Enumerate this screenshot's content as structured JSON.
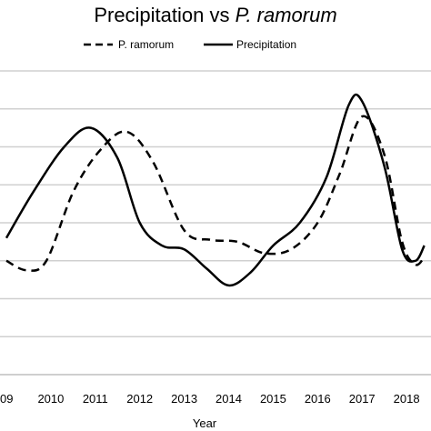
{
  "chart_data": {
    "type": "line",
    "title": "Precipitation vs ",
    "title_italic": "P. ramorum",
    "xlabel": "Year",
    "ylabel": "",
    "x": [
      2009,
      2010,
      2011,
      2012,
      2013,
      2014,
      2015,
      2016,
      2017,
      2018
    ],
    "tick_labels": [
      "09",
      "2010",
      "2011",
      "2012",
      "2013",
      "2014",
      "2015",
      "2016",
      "2017",
      "2018"
    ],
    "xlim": [
      2009,
      2018.4
    ],
    "ylim": [
      0,
      8
    ],
    "grid": true,
    "legend_position": "top",
    "series": [
      {
        "name": "P. ramorum",
        "style": "dashed",
        "color": "#000000",
        "points": [
          [
            2009,
            3.0
          ],
          [
            2009.45,
            2.75
          ],
          [
            2009.9,
            3.0
          ],
          [
            2010.5,
            4.8
          ],
          [
            2011.1,
            5.9
          ],
          [
            2011.7,
            6.4
          ],
          [
            2012.3,
            5.6
          ],
          [
            2013.0,
            3.8
          ],
          [
            2013.6,
            3.55
          ],
          [
            2014.2,
            3.5
          ],
          [
            2014.8,
            3.2
          ],
          [
            2015.4,
            3.3
          ],
          [
            2016.0,
            4.0
          ],
          [
            2016.5,
            5.3
          ],
          [
            2017.0,
            6.8
          ],
          [
            2017.5,
            5.8
          ],
          [
            2017.9,
            3.5
          ],
          [
            2018.2,
            2.9
          ],
          [
            2018.4,
            3.1
          ]
        ]
      },
      {
        "name": "Precipitation",
        "style": "solid",
        "color": "#000000",
        "points": [
          [
            2009,
            3.6
          ],
          [
            2009.6,
            4.8
          ],
          [
            2010.3,
            6.0
          ],
          [
            2010.9,
            6.5
          ],
          [
            2011.5,
            5.7
          ],
          [
            2012.0,
            4.0
          ],
          [
            2012.5,
            3.4
          ],
          [
            2013.0,
            3.3
          ],
          [
            2013.5,
            2.8
          ],
          [
            2014.0,
            2.35
          ],
          [
            2014.5,
            2.7
          ],
          [
            2015.0,
            3.4
          ],
          [
            2015.6,
            4.0
          ],
          [
            2016.2,
            5.2
          ],
          [
            2016.7,
            7.1
          ],
          [
            2017.0,
            7.2
          ],
          [
            2017.5,
            5.5
          ],
          [
            2017.9,
            3.3
          ],
          [
            2018.2,
            3.0
          ],
          [
            2018.4,
            3.4
          ]
        ]
      }
    ]
  }
}
